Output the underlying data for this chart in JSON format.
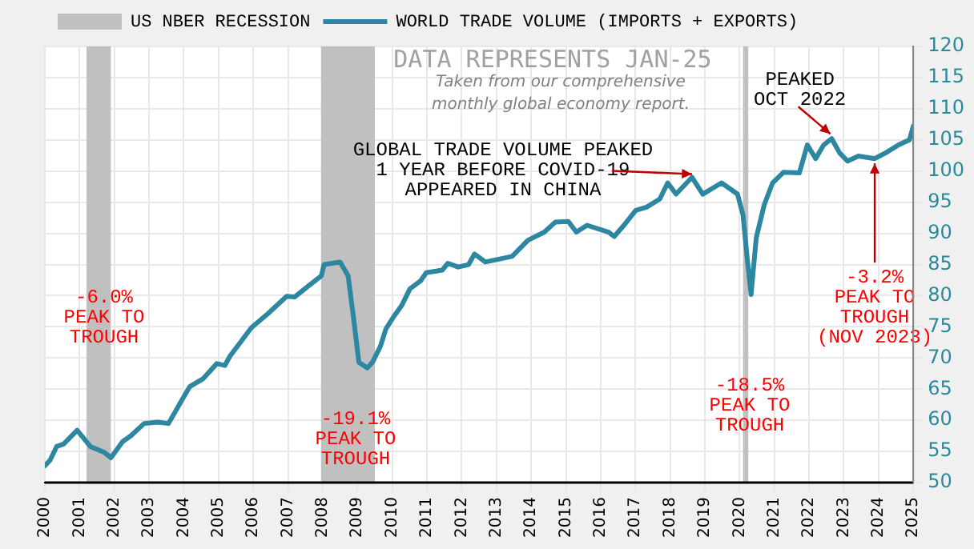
{
  "chart_data": {
    "type": "line",
    "title": "DATA REPRESENTS JAN-25",
    "subtitle": "Taken from our comprehensive monthly global economy report.",
    "x": [
      2000.0,
      2000.15,
      2000.34,
      2000.54,
      2000.93,
      2001.31,
      2001.7,
      2001.9,
      2002.24,
      2002.47,
      2002.86,
      2003.25,
      2003.56,
      2003.94,
      2004.17,
      2004.56,
      2004.95,
      2005.18,
      2005.33,
      2005.95,
      2006.42,
      2006.96,
      2007.19,
      2007.57,
      2007.96,
      2008.04,
      2008.5,
      2008.73,
      2008.89,
      2009.04,
      2009.28,
      2009.43,
      2009.66,
      2009.82,
      2010.05,
      2010.28,
      2010.51,
      2010.82,
      2010.98,
      2011.44,
      2011.6,
      2011.9,
      2012.2,
      2012.37,
      2012.68,
      2013.45,
      2013.91,
      2014.38,
      2014.69,
      2015.07,
      2015.3,
      2015.61,
      2016.23,
      2016.39,
      2016.7,
      2017.01,
      2017.32,
      2017.7,
      2017.93,
      2018.17,
      2018.63,
      2018.94,
      2019.48,
      2019.94,
      2020.1,
      2020.22,
      2020.33,
      2020.48,
      2020.71,
      2020.95,
      2021.26,
      2021.72,
      2021.95,
      2022.19,
      2022.42,
      2022.65,
      2022.88,
      2023.11,
      2023.42,
      2023.89,
      2024.2,
      2024.58,
      2024.89,
      2025.0
    ],
    "series": [
      {
        "name": "WORLD TRADE VOLUME (IMPORTS + EXPORTS)",
        "color": "#2e87a0",
        "values": [
          52.7,
          53.6,
          55.8,
          56.2,
          58.4,
          55.8,
          54.9,
          54.0,
          56.6,
          57.5,
          59.5,
          59.7,
          59.5,
          63.2,
          65.4,
          66.7,
          69.1,
          68.8,
          70.3,
          74.9,
          77.1,
          79.9,
          79.8,
          81.5,
          83.2,
          85.0,
          85.4,
          83.2,
          76.3,
          69.3,
          68.4,
          69.3,
          71.9,
          74.7,
          76.7,
          78.5,
          81.1,
          82.4,
          83.7,
          84.1,
          85.2,
          84.6,
          85.0,
          86.7,
          85.4,
          86.3,
          88.9,
          90.2,
          91.8,
          91.9,
          90.2,
          91.3,
          90.2,
          89.5,
          91.5,
          93.7,
          94.2,
          95.5,
          98.1,
          96.3,
          99.0,
          96.3,
          98.1,
          96.3,
          92.9,
          85.9,
          80.2,
          89.3,
          94.6,
          98.1,
          99.8,
          99.7,
          104.2,
          102.0,
          104.2,
          105.2,
          102.9,
          101.6,
          102.4,
          102.0,
          102.9,
          104.2,
          105.0,
          107.2
        ]
      }
    ],
    "bands": [
      {
        "axis": "x",
        "from": 2001.2,
        "to": 2001.9,
        "label": "US NBER RECESSION",
        "color": "#c0c0c0"
      },
      {
        "axis": "x",
        "from": 2007.95,
        "to": 2009.5,
        "color": "#c0c0c0"
      },
      {
        "axis": "x",
        "from": 2020.1,
        "to": 2020.25,
        "color": "#c0c0c0"
      }
    ],
    "annotations": [
      "-6.0%\nPEAK TO\nTROUGH",
      "-19.1%\nPEAK TO\nTROUGH",
      "-18.5%\nPEAK TO\nTROUGH",
      {
        "text": "GLOBAL TRADE VOLUME PEAKED\n1 YEAR BEFORE COVID-19\nAPPEARED IN CHINA",
        "x": 2018.63,
        "y": 99.0
      },
      {
        "text": "PEAKED\nOCT 2022",
        "x": 2022.75,
        "y": 105.2
      },
      {
        "text": "-3.2%\nPEAK TO\nTROUGH\n(NOV 2023)",
        "x": 2023.89,
        "y": 102.0
      }
    ],
    "xlim": [
      2000,
      2025
    ],
    "xticks": [
      2000,
      2001,
      2002,
      2003,
      2004,
      2005,
      2006,
      2007,
      2008,
      2009,
      2010,
      2011,
      2012,
      2013,
      2014,
      2015,
      2016,
      2017,
      2018,
      2019,
      2020,
      2021,
      2022,
      2023,
      2024,
      2025
    ],
    "ylim": [
      50,
      120
    ],
    "yticks": [
      50,
      55,
      60,
      65,
      70,
      75,
      80,
      85,
      90,
      95,
      100,
      105,
      110,
      115,
      120
    ],
    "grid": true,
    "legend": "top",
    "marker": "none",
    "line_style": "solid"
  }
}
